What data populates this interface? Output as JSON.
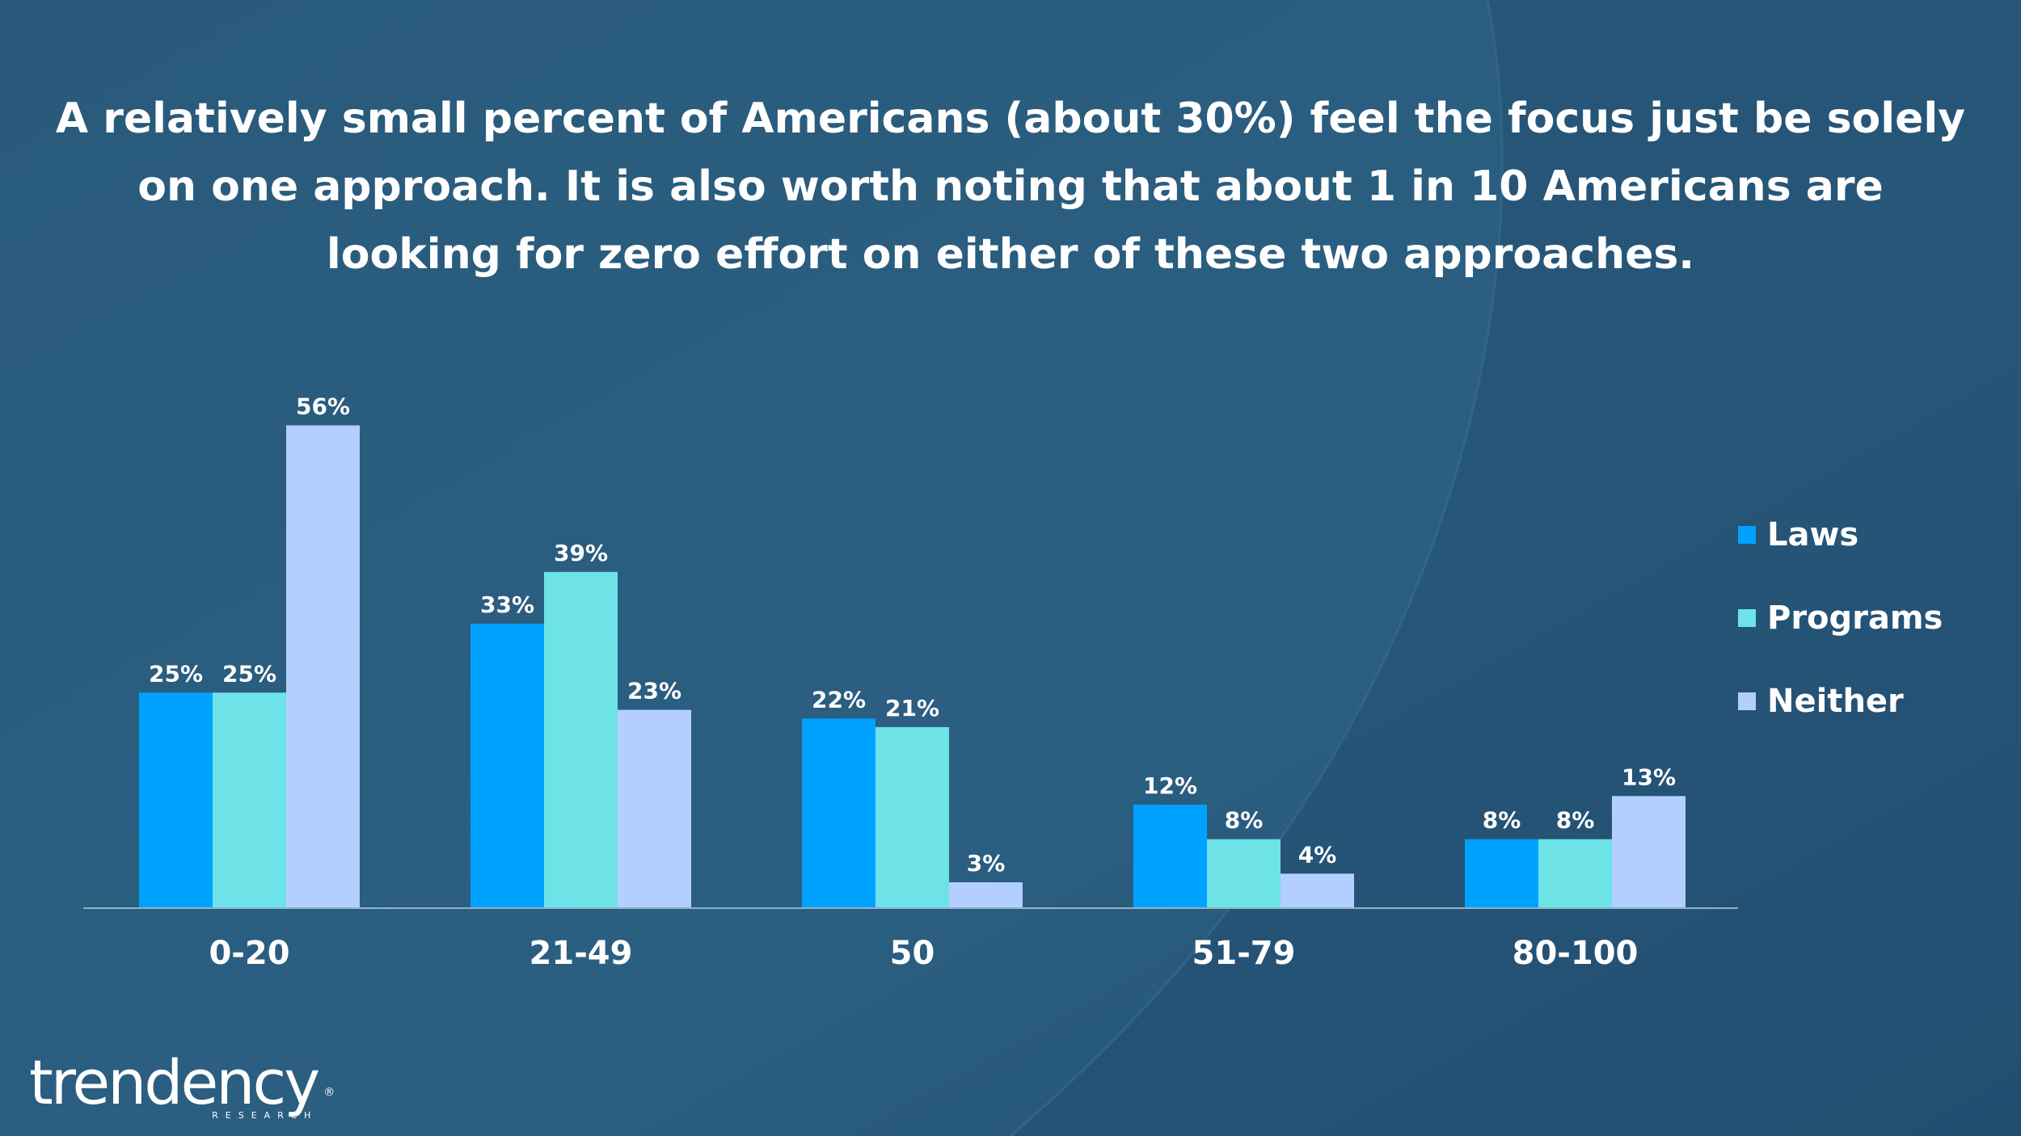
{
  "title_lines": [
    "A relatively small percent of Americans (about 30%) feel the focus just be solely",
    "on one approach. It is also worth noting that about 1 in 10 Americans are",
    "looking for zero effort on either of these two approaches."
  ],
  "colors": {
    "background": "#2a5d7f",
    "laws": "#00a2ff",
    "programs": "#6de3e8",
    "neither": "#b3cfff",
    "text": "#ffffff"
  },
  "chart_data": {
    "type": "bar",
    "title": "A relatively small percent of Americans (about 30%) feel the focus just be solely on one approach. It is also worth noting that about 1 in 10 Americans are looking for zero effort on either of these two approaches.",
    "categories": [
      "0-20",
      "21-49",
      "50",
      "51-79",
      "80-100"
    ],
    "series": [
      {
        "name": "Laws",
        "values": [
          25,
          33,
          22,
          12,
          8
        ],
        "labels": [
          "25%",
          "33%",
          "22%",
          "12%",
          "8%"
        ]
      },
      {
        "name": "Programs",
        "values": [
          25,
          39,
          21,
          8,
          8
        ],
        "labels": [
          "25%",
          "39%",
          "21%",
          "8%",
          "8%"
        ]
      },
      {
        "name": "Neither",
        "values": [
          56,
          23,
          3,
          4,
          13
        ],
        "labels": [
          "56%",
          "23%",
          "3%",
          "4%",
          "13%"
        ]
      }
    ],
    "xlabel": "",
    "ylabel": "",
    "ylim": [
      0,
      60
    ],
    "legend_position": "right",
    "grid": false
  },
  "logo": {
    "word": "trendency",
    "tm": "®",
    "sub": "RESEARCH"
  }
}
